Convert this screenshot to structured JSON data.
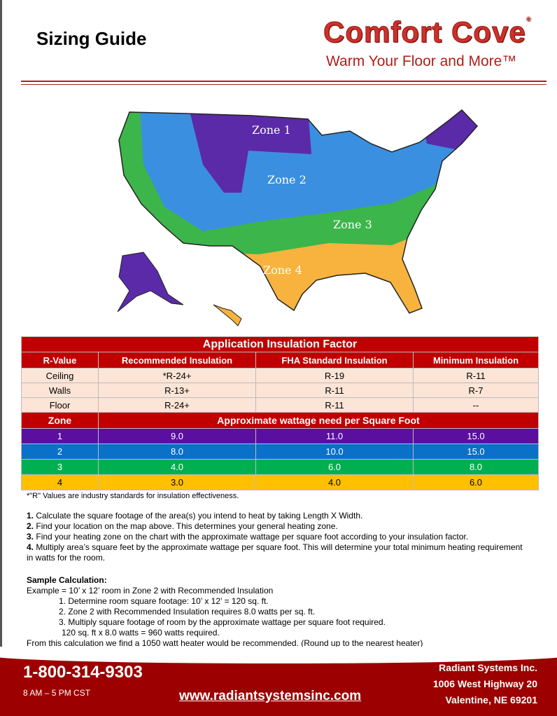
{
  "header": {
    "title": "Sizing Guide",
    "logo": "Comfort Cove",
    "logo_mark": "®",
    "tagline": "Warm Your Floor and More™"
  },
  "map": {
    "zones": [
      "Zone 1",
      "Zone 2",
      "Zone 3",
      "Zone 4"
    ],
    "colors": {
      "zone1": "#5b2aa8",
      "zone2": "#3b8fe0",
      "zone3": "#3cb54a",
      "zone4": "#f7b33d"
    }
  },
  "table": {
    "title": "Application Insulation Factor",
    "headers": [
      "R-Value",
      "Recommended Insulation",
      "FHA Standard Insulation",
      "Minimum Insulation"
    ],
    "rows": [
      [
        "Ceiling",
        "*R-24+",
        "R-19",
        "R-11"
      ],
      [
        "Walls",
        "R-13+",
        "R-11",
        "R-7"
      ],
      [
        "Floor",
        "R-24+",
        "R-11",
        "--"
      ]
    ],
    "zone_header": [
      "Zone",
      "Approximate wattage need per Square Foot"
    ],
    "zone_rows": [
      [
        "1",
        "9.0",
        "11.0",
        "15.0"
      ],
      [
        "2",
        "8.0",
        "10.0",
        "15.0"
      ],
      [
        "3",
        "4.0",
        "6.0",
        "8.0"
      ],
      [
        "4",
        "3.0",
        "4.0",
        "6.0"
      ]
    ],
    "zone_colors": [
      "#5a0fa0",
      "#0a70c8",
      "#00b050",
      "#ffc000"
    ]
  },
  "note": "*\"R\" Values are industry standards for insulation effectiveness.",
  "steps": [
    {
      "n": "1.",
      "t": "Calculate the square footage of the area(s) you intend to heat by taking Length X Width."
    },
    {
      "n": "2.",
      "t": "Find your location on the map above. This determines your general heating zone."
    },
    {
      "n": "3.",
      "t": "Find your heating zone on the chart with the approximate wattage per square foot according to your insulation factor."
    },
    {
      "n": "4.",
      "t": "Multiply area’s square feet by the approximate wattage per square foot. This will determine your total minimum heating requirement in watts for the room."
    }
  ],
  "sample": {
    "title": "Sample Calculation:",
    "example": "Example = 10’ x 12’ room in Zone 2 with Recommended Insulation",
    "items": [
      "1.  Determine room square footage: 10’ x 12’ = 120 sq. ft.",
      "2.  Zone 2 with Recommended Insulation requires 8.0 watts per sq. ft.",
      "3.  Multiply square footage of room by the approximate wattage per square foot required."
    ],
    "calc": "120 sq. ft x 8.0 watts = 960 watts required.",
    "conclusion": "From this calculation we find a 1050 watt heater would be recommended. (Round up to the nearest heater)"
  },
  "footer": {
    "phone": "1-800-314-9303",
    "hours": "8 AM – 5 PM CST",
    "website": "www.radiantsystemsinc.com",
    "company": "Radiant Systems Inc.",
    "street": "1006 West Highway 20",
    "city": "Valentine, NE 69201"
  }
}
